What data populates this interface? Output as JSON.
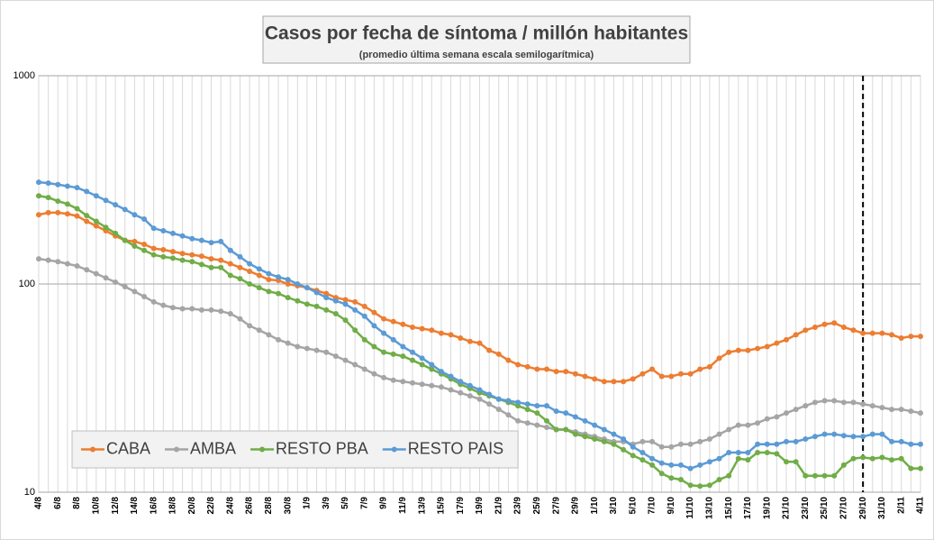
{
  "chart_data": {
    "type": "line",
    "title": "Casos por fecha de síntoma / millón habitantes",
    "subtitle": "(promedio última semana escala semilogarítmica)",
    "categories": [
      "4/8",
      null,
      "6/8",
      null,
      "8/8",
      null,
      "10/8",
      null,
      "12/8",
      null,
      "14/8",
      null,
      "16/8",
      null,
      "18/8",
      null,
      "20/8",
      null,
      "22/8",
      null,
      "24/8",
      null,
      "26/8",
      null,
      "28/8",
      null,
      "30/8",
      null,
      "1/9",
      null,
      "3/9",
      null,
      "5/9",
      null,
      "7/9",
      null,
      "9/9",
      null,
      "11/9",
      null,
      "13/9",
      null,
      "15/9",
      null,
      "17/9",
      null,
      "19/9",
      null,
      "21/9",
      null,
      "23/9",
      null,
      "25/9",
      null,
      "27/9",
      null,
      "29/9",
      null,
      "1/10",
      null,
      "3/10",
      null,
      "5/10",
      null,
      "7/10",
      null,
      "9/10",
      null,
      "11/10",
      null,
      "13/10",
      null,
      "15/10",
      null,
      "17/10",
      null,
      "19/10",
      null,
      "21/10",
      null,
      "23/10",
      null,
      "25/10",
      null,
      "27/10",
      null,
      "29/10",
      null,
      "31/10",
      null,
      "2/11",
      null,
      "4/11"
    ],
    "series": [
      {
        "name": "CABA",
        "color": "#ed7d31",
        "values": [
          215,
          220,
          220,
          217,
          212,
          200,
          190,
          180,
          170,
          162,
          160,
          155,
          148,
          146,
          143,
          140,
          138,
          136,
          132,
          130,
          125,
          120,
          115,
          110,
          105,
          104,
          100,
          98,
          96,
          93,
          90,
          86,
          84,
          82,
          78,
          73,
          68,
          66,
          64,
          62,
          61,
          60,
          58,
          57,
          55,
          53,
          52,
          48,
          46,
          43,
          41,
          40,
          39,
          39,
          38,
          38,
          37,
          36,
          35,
          34,
          34,
          34,
          35,
          37,
          39,
          36,
          36,
          37,
          37,
          39,
          40,
          44,
          47,
          48,
          48,
          49,
          50,
          52,
          54,
          57,
          60,
          62,
          64,
          65,
          62,
          60,
          58,
          58,
          58,
          57,
          55,
          56,
          56
        ]
      },
      {
        "name": "AMBA",
        "color": "#a5a5a5",
        "values": [
          132,
          130,
          128,
          125,
          122,
          117,
          112,
          107,
          102,
          97,
          92,
          87,
          82,
          79,
          77,
          76,
          76,
          75,
          75,
          74,
          72,
          68,
          63,
          60,
          57,
          54,
          52,
          50,
          49,
          48,
          47,
          45,
          43,
          41,
          39,
          37,
          35.5,
          34.5,
          34,
          33.5,
          33,
          32.5,
          32,
          31,
          30,
          29,
          28,
          26.5,
          25,
          23.5,
          22,
          21.5,
          21,
          20.5,
          20,
          20,
          19.5,
          19,
          18.5,
          18,
          17.5,
          17.5,
          17,
          17.5,
          17.5,
          16.5,
          16.5,
          17,
          17,
          17.5,
          18,
          19,
          20,
          21,
          21,
          21.5,
          22.5,
          23,
          24,
          25,
          26,
          27,
          27.5,
          27.5,
          27,
          27,
          26.5,
          26,
          25.5,
          25,
          25,
          24.5,
          24
        ]
      },
      {
        "name": "RESTO PBA",
        "color": "#70ad47",
        "values": [
          265,
          260,
          250,
          242,
          230,
          213,
          200,
          187,
          175,
          162,
          152,
          145,
          138,
          135,
          133,
          130,
          128,
          124,
          120,
          120,
          110,
          106,
          100,
          96,
          92,
          90,
          86,
          83,
          80,
          78,
          75,
          72,
          67,
          60,
          54,
          50,
          47,
          46,
          45,
          43,
          41,
          39,
          37,
          35,
          33,
          31.5,
          30,
          29,
          28,
          27,
          26,
          25,
          24,
          22,
          20,
          20,
          19,
          18.5,
          18,
          17.5,
          17,
          16,
          15,
          14.3,
          13.5,
          12.3,
          11.7,
          11.5,
          10.8,
          10.7,
          10.8,
          11.5,
          12,
          14.5,
          14.3,
          15.5,
          15.5,
          15.3,
          14,
          14,
          12,
          12,
          12,
          12,
          13.5,
          14.5,
          14.7,
          14.5,
          14.7,
          14.3,
          14.5,
          13,
          13
        ]
      },
      {
        "name": "RESTO PAIS",
        "color": "#5b9bd5",
        "values": [
          308,
          305,
          300,
          295,
          290,
          278,
          265,
          252,
          240,
          228,
          215,
          205,
          185,
          180,
          175,
          170,
          165,
          162,
          158,
          160,
          145,
          135,
          125,
          118,
          112,
          108,
          105,
          100,
          96,
          91,
          86,
          83,
          80,
          75,
          70,
          63,
          58,
          54,
          50,
          47,
          44,
          41,
          38,
          36,
          34,
          32.5,
          31,
          29.5,
          28,
          27.5,
          27,
          26.5,
          26,
          26,
          24.5,
          24,
          23,
          22,
          21,
          20,
          19,
          18,
          16.5,
          15.5,
          14.5,
          13.8,
          13.5,
          13.5,
          13,
          13.5,
          14,
          14.5,
          15.5,
          15.5,
          15.5,
          17,
          17,
          17,
          17.5,
          17.5,
          18,
          18.5,
          19,
          19,
          18.7,
          18.5,
          18.5,
          19,
          19,
          17.5,
          17.5,
          17,
          17
        ]
      }
    ],
    "ylim": [
      10,
      1000
    ],
    "yticks": [
      10,
      100,
      1000
    ],
    "log_y": true,
    "grid": true,
    "legend": "lower left",
    "vline": "29/10"
  }
}
